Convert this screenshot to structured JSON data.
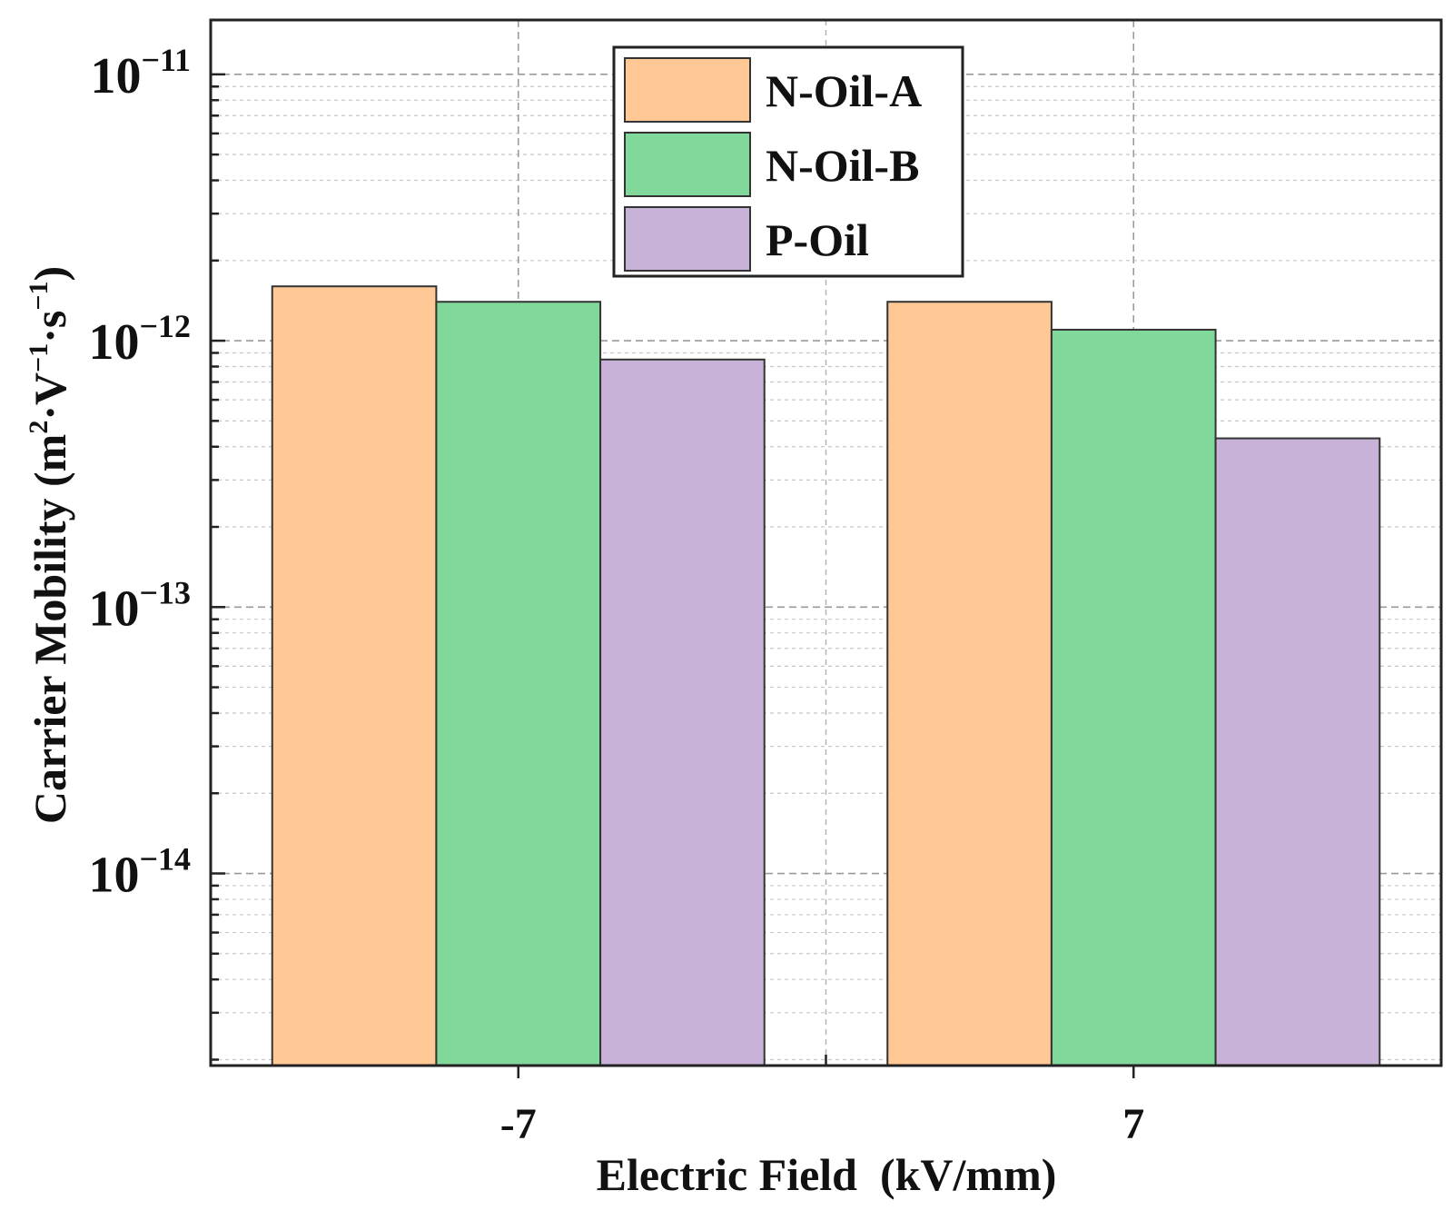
{
  "chart_data": {
    "type": "bar",
    "title": "",
    "xlabel": "Electric Field  (kV/mm)",
    "ylabel": {
      "prefix": "Carrier Mobility (m",
      "sup1": "2",
      "mid1": "·V",
      "sup2": "−1",
      "mid2": "·s",
      "sup3": "−1",
      "suffix": ")"
    },
    "yscale": "log",
    "ylim": [
      1.9e-15,
      1.6e-11
    ],
    "yticks": [
      {
        "value": 1e-11,
        "base": "10",
        "exp": "−11"
      },
      {
        "value": 1e-12,
        "base": "10",
        "exp": "−12"
      },
      {
        "value": 1e-13,
        "base": "10",
        "exp": "−13"
      },
      {
        "value": 1e-14,
        "base": "10",
        "exp": "−14"
      }
    ],
    "categories": [
      "-7",
      "7"
    ],
    "series": [
      {
        "name": "N-Oil-A",
        "color": "#FFC895",
        "values": [
          1.6e-12,
          1.4e-12
        ]
      },
      {
        "name": "N-Oil-B",
        "color": "#80D89B",
        "values": [
          1.4e-12,
          1.1e-12
        ]
      },
      {
        "name": "P-Oil",
        "color": "#C8B2D7",
        "values": [
          8.5e-13,
          4.3e-13
        ]
      }
    ],
    "grid": true,
    "legend_position": "top-center"
  }
}
